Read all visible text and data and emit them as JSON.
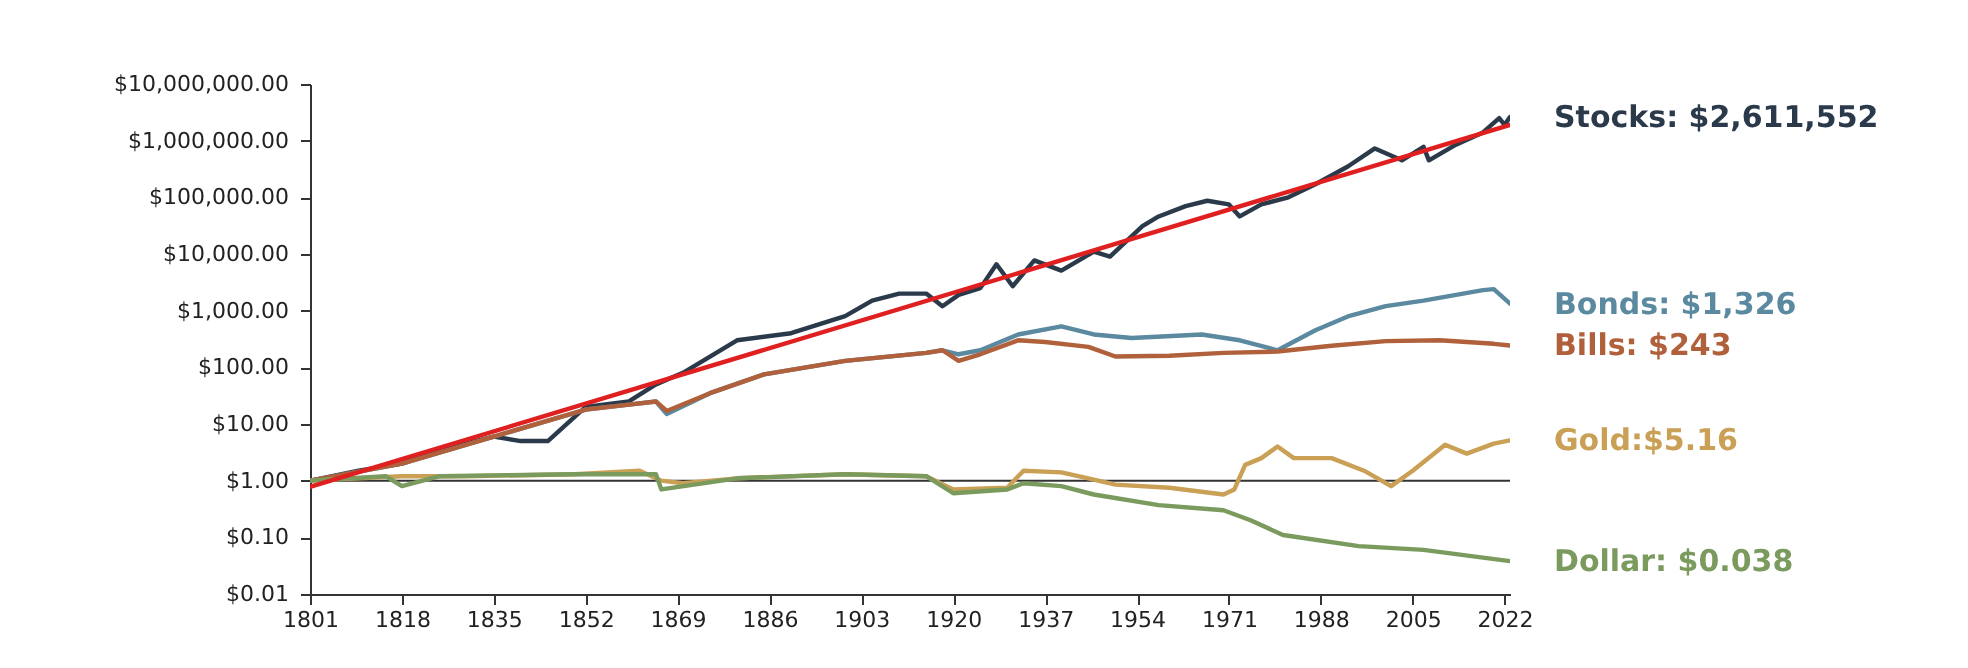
{
  "chart_data": {
    "type": "line",
    "log": "y",
    "xlim": [
      1801,
      2023
    ],
    "ylim": [
      0.01,
      10000000
    ],
    "xticks": [
      1801,
      1818,
      1835,
      1852,
      1869,
      1886,
      1903,
      1920,
      1937,
      1954,
      1971,
      1988,
      2005,
      2022
    ],
    "yticks": [
      {
        "value": 0.01,
        "label": "$0.01"
      },
      {
        "value": 0.1,
        "label": "$0.10"
      },
      {
        "value": 1,
        "label": "$1.00"
      },
      {
        "value": 10,
        "label": "$10.00"
      },
      {
        "value": 100,
        "label": "$100.00"
      },
      {
        "value": 1000,
        "label": "$1,000.00"
      },
      {
        "value": 10000,
        "label": "$10,000.00"
      },
      {
        "value": 100000,
        "label": "$100,000.00"
      },
      {
        "value": 1000000,
        "label": "$1,000,000.00"
      },
      {
        "value": 10000000,
        "label": "$10,000,000.00"
      }
    ],
    "ref_lines": [
      {
        "axis": "y",
        "value": 1,
        "color": "#333333"
      }
    ],
    "series": [
      {
        "name": "Stocks: $2,611,552",
        "color": "#2b3a4a",
        "x": [
          1801,
          1810,
          1818,
          1825,
          1835,
          1840,
          1845,
          1852,
          1860,
          1865,
          1870,
          1880,
          1890,
          1900,
          1905,
          1910,
          1915,
          1918,
          1921,
          1925,
          1928,
          1931,
          1935,
          1940,
          1946,
          1949,
          1955,
          1958,
          1963,
          1967,
          1971,
          1973,
          1977,
          1982,
          1987,
          1993,
          1998,
          2003,
          2007,
          2008,
          2013,
          2018,
          2021,
          2022,
          2023
        ],
        "values": [
          1,
          1.5,
          2,
          3.5,
          6,
          5,
          5,
          20,
          25,
          50,
          80,
          300,
          400,
          800,
          1500,
          2000,
          2000,
          1200,
          1900,
          2500,
          6600,
          2700,
          7700,
          5100,
          11000,
          9000,
          31000,
          46000,
          70000,
          87000,
          75000,
          46000,
          75000,
          100000,
          170000,
          350000,
          730000,
          450000,
          780000,
          450000,
          850000,
          1400000,
          2500000,
          1900000,
          2611552
        ]
      },
      {
        "name": "Bonds: $1,326",
        "color": "#5b8aa0",
        "x": [
          1801,
          1818,
          1835,
          1852,
          1860,
          1865,
          1867,
          1875,
          1885,
          1900,
          1915,
          1918,
          1921,
          1925,
          1932,
          1940,
          1946,
          1953,
          1966,
          1973,
          1980,
          1987,
          1993,
          2000,
          2007,
          2018,
          2020,
          2023
        ],
        "values": [
          1,
          2,
          6,
          18,
          22,
          25,
          15,
          35,
          75,
          130,
          180,
          200,
          170,
          200,
          380,
          530,
          380,
          330,
          380,
          300,
          200,
          450,
          790,
          1200,
          1500,
          2300,
          2400,
          1326
        ]
      },
      {
        "name": "Bills: $243",
        "color": "#b0603a",
        "x": [
          1801,
          1818,
          1835,
          1852,
          1860,
          1865,
          1867,
          1875,
          1885,
          1900,
          1915,
          1918,
          1921,
          1925,
          1932,
          1937,
          1945,
          1950,
          1960,
          1970,
          1980,
          1990,
          2000,
          2010,
          2020,
          2023
        ],
        "values": [
          1,
          2,
          6,
          18,
          22,
          25,
          17,
          35,
          75,
          130,
          180,
          200,
          130,
          170,
          300,
          280,
          230,
          155,
          160,
          180,
          190,
          240,
          290,
          300,
          260,
          243
        ]
      },
      {
        "name": "Gold:$5.16",
        "color": "#c9a055",
        "x": [
          1801,
          1810,
          1818,
          1830,
          1850,
          1862,
          1866,
          1870,
          1880,
          1900,
          1915,
          1920,
          1930,
          1933,
          1940,
          1945,
          1950,
          1960,
          1970,
          1972,
          1974,
          1977,
          1980,
          1983,
          1990,
          1996,
          2001,
          2005,
          2011,
          2015,
          2020,
          2023
        ],
        "values": [
          1,
          1.1,
          1.2,
          1.2,
          1.3,
          1.5,
          1,
          0.9,
          1.1,
          1.3,
          1.2,
          0.7,
          0.75,
          1.5,
          1.4,
          1.1,
          0.85,
          0.75,
          0.57,
          0.7,
          1.9,
          2.5,
          4,
          2.5,
          2.5,
          1.5,
          0.8,
          1.5,
          4.3,
          3,
          4.5,
          5.16
        ]
      },
      {
        "name": "Dollar: $0.038",
        "color": "#7a9a5e",
        "x": [
          1801,
          1815,
          1818,
          1825,
          1850,
          1865,
          1866,
          1880,
          1900,
          1915,
          1920,
          1930,
          1933,
          1940,
          1946,
          1958,
          1970,
          1975,
          1981,
          1995,
          2007,
          2023
        ],
        "values": [
          1,
          1.2,
          0.8,
          1.2,
          1.3,
          1.3,
          0.7,
          1.1,
          1.3,
          1.2,
          0.6,
          0.7,
          0.9,
          0.8,
          0.57,
          0.37,
          0.3,
          0.2,
          0.11,
          0.07,
          0.06,
          0.038
        ]
      },
      {
        "type": "line",
        "color": "#e02020",
        "x": [
          1801,
          2023
        ],
        "values": [
          0.78,
          1900000
        ]
      }
    ]
  }
}
